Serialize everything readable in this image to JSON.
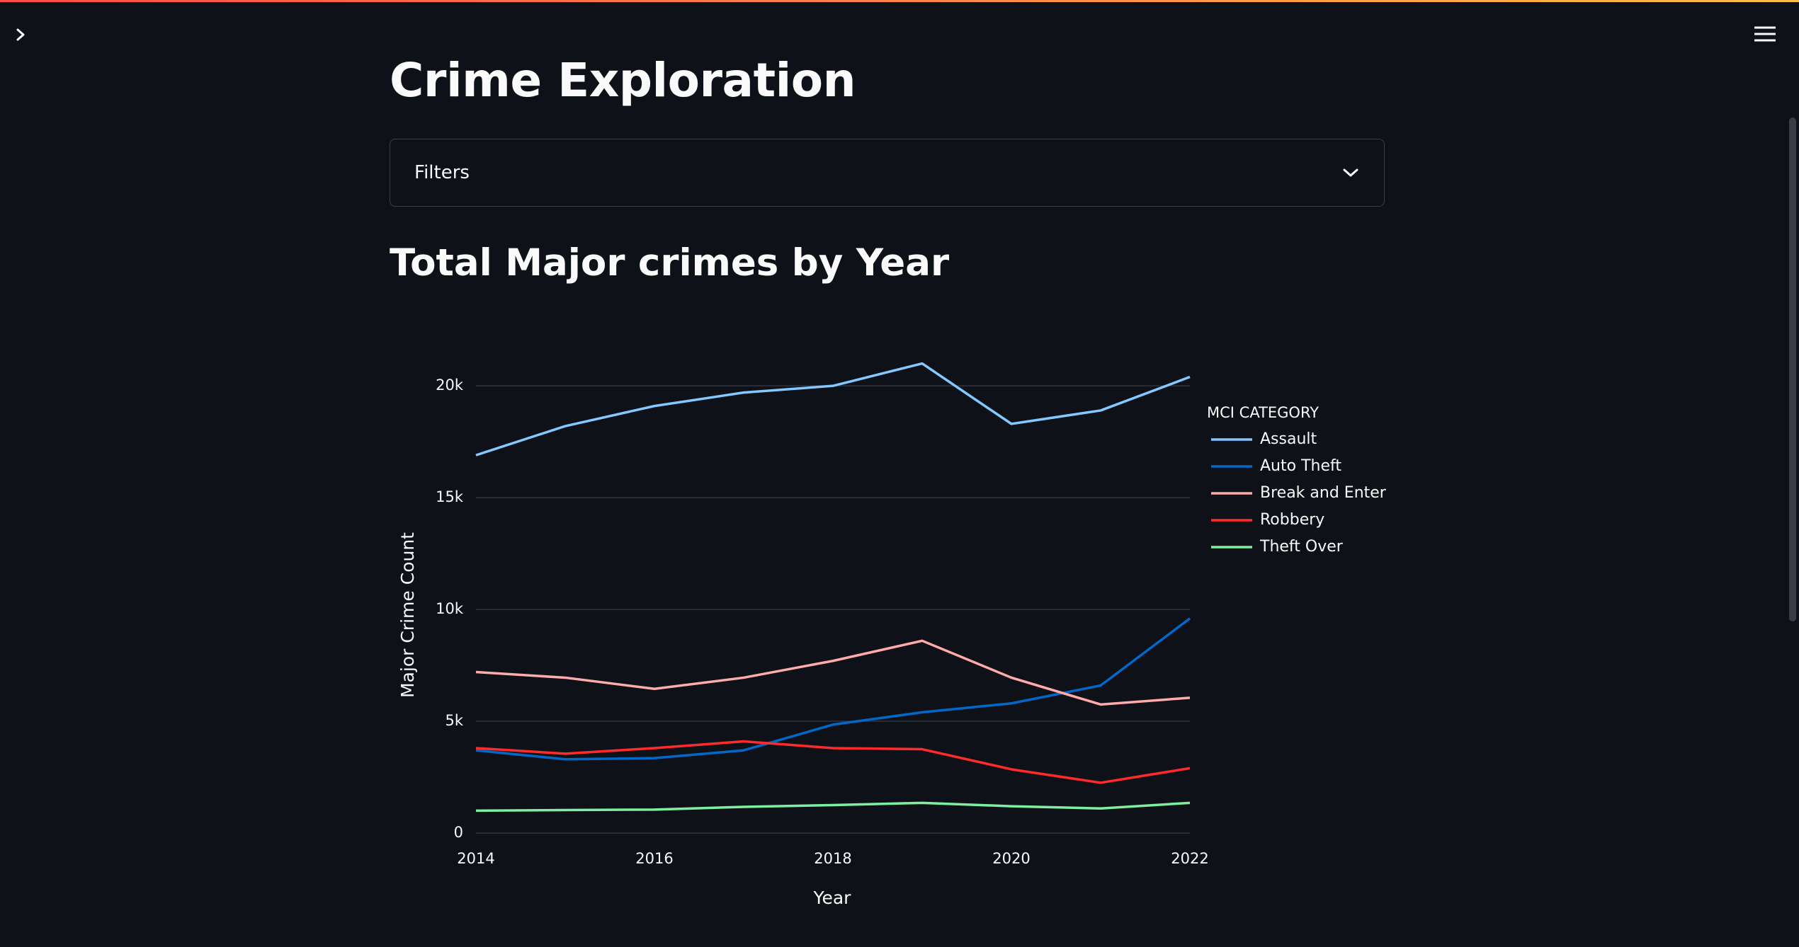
{
  "header": {
    "sidebar_toggle_icon": "chevron-right-icon",
    "menu_icon": "hamburger-menu-icon"
  },
  "page": {
    "title": "Crime Exploration"
  },
  "filters": {
    "label": "Filters",
    "expand_icon": "chevron-down-icon"
  },
  "section": {
    "title": "Total Major crimes by Year"
  },
  "colors": {
    "background": "#0e1117",
    "gridline": "#31333f",
    "Assault": "#83c9ff",
    "Auto Theft": "#0068c9",
    "Break and Enter": "#ffabab",
    "Robbery": "#ff2b2b",
    "Theft Over": "#7defa1"
  },
  "chart_data": {
    "type": "line",
    "title": "",
    "xlabel": "Year",
    "ylabel": "Major Crime Count",
    "x": [
      2014,
      2015,
      2016,
      2017,
      2018,
      2019,
      2020,
      2021,
      2022
    ],
    "x_ticks": [
      "2014",
      "2016",
      "2018",
      "2020",
      "2022"
    ],
    "xlim": [
      2014,
      2022
    ],
    "y_ticks": [
      "0",
      "5k",
      "10k",
      "15k",
      "20k"
    ],
    "ylim": [
      0,
      22000
    ],
    "grid": true,
    "legend_title": "MCI CATEGORY",
    "legend_position": "right",
    "series": [
      {
        "name": "Assault",
        "values": [
          16900,
          18200,
          19100,
          19700,
          20000,
          21000,
          18300,
          18900,
          20400
        ]
      },
      {
        "name": "Auto Theft",
        "values": [
          3700,
          3300,
          3350,
          3700,
          4850,
          5400,
          5800,
          6600,
          9600
        ]
      },
      {
        "name": "Break and Enter",
        "values": [
          7200,
          6950,
          6450,
          6950,
          7700,
          8600,
          6950,
          5750,
          6050
        ]
      },
      {
        "name": "Robbery",
        "values": [
          3800,
          3550,
          3800,
          4100,
          3800,
          3750,
          2850,
          2250,
          2900
        ]
      },
      {
        "name": "Theft Over",
        "values": [
          1000,
          1030,
          1050,
          1170,
          1250,
          1350,
          1200,
          1100,
          1350
        ]
      }
    ]
  }
}
